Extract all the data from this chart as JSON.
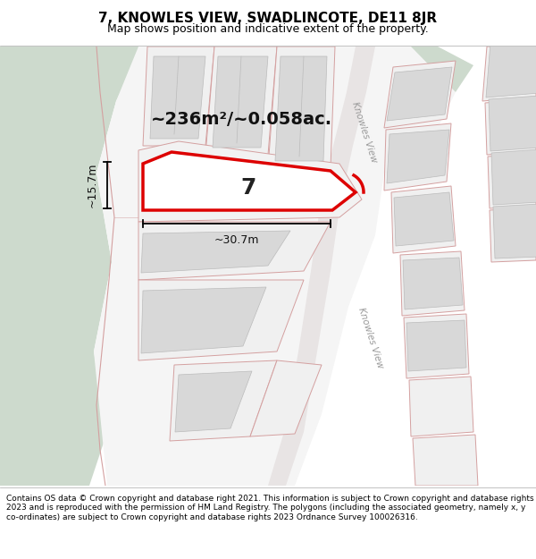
{
  "title_line1": "7, KNOWLES VIEW, SWADLINCOTE, DE11 8JR",
  "title_line2": "Map shows position and indicative extent of the property.",
  "footer_text": "Contains OS data © Crown copyright and database right 2021. This information is subject to Crown copyright and database rights 2023 and is reproduced with the permission of HM Land Registry. The polygons (including the associated geometry, namely x, y co-ordinates) are subject to Crown copyright and database rights 2023 Ordnance Survey 100026316.",
  "area_label": "~236m²/~0.058ac.",
  "width_label": "~30.7m",
  "height_label": "~15.7m",
  "plot_number": "7",
  "bg_map_color": "#dce6dc",
  "road_color": "#f5f0f0",
  "plot_outline_color": "#dd0000",
  "cadastral_line_color": "#d4a0a0",
  "building_fill": "#e0e0e0",
  "building_edge": "#b8b8b8",
  "green_color": "#cddacd",
  "white_area": "#f8f8f8",
  "title_fontsize": 11,
  "subtitle_fontsize": 9,
  "footer_fontsize": 6.5,
  "area_fontsize": 14,
  "dim_fontsize": 9,
  "plot_label_fontsize": 18
}
